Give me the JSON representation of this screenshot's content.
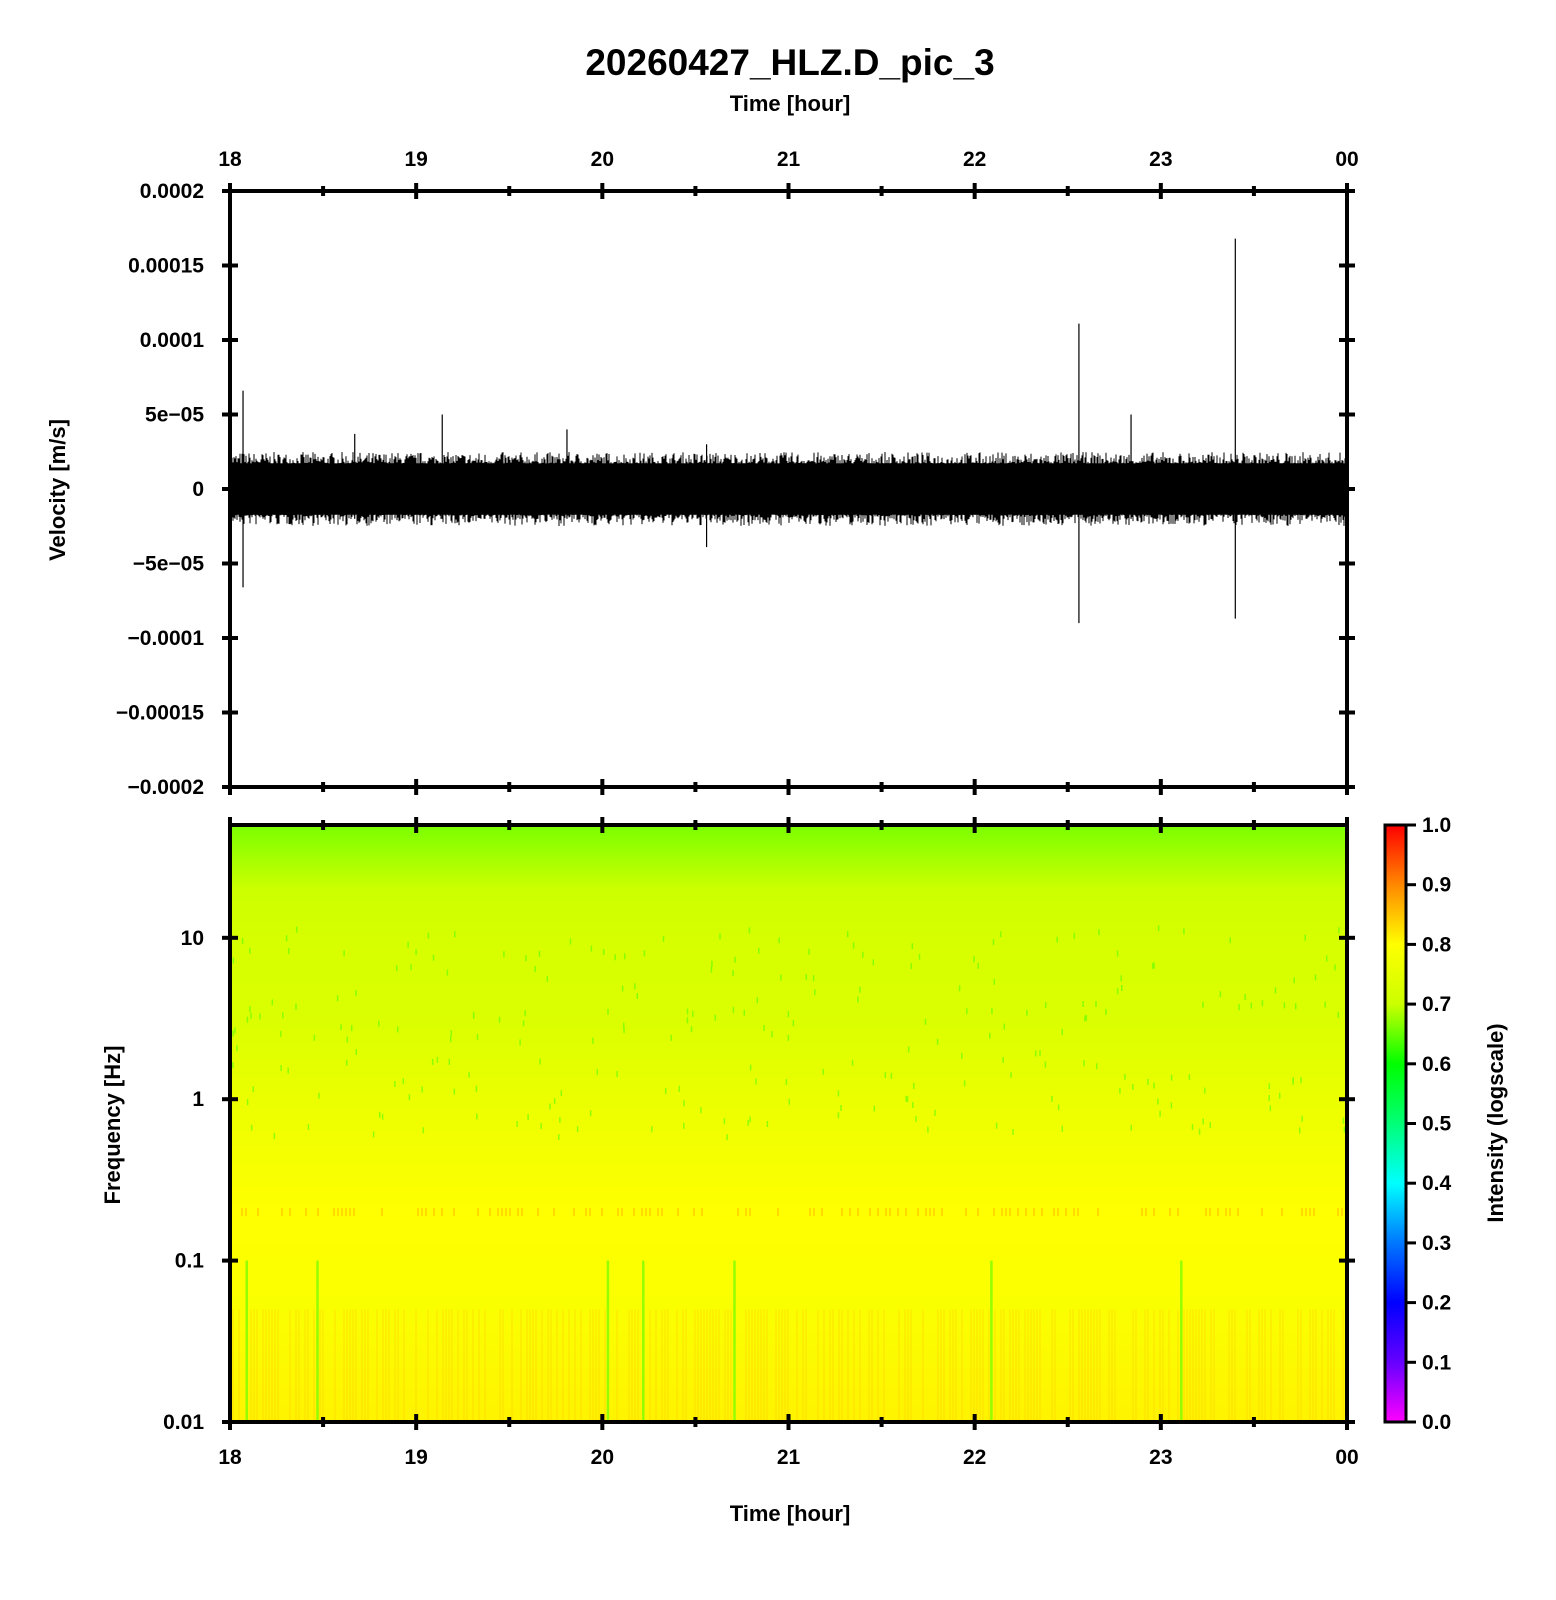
{
  "chart_data": [
    {
      "type": "line",
      "title": "20260427_HLZ.D_pic_3",
      "xlabel": "Time [hour]",
      "ylabel": "Velocity [m/s]",
      "x_ticks": [
        "18",
        "19",
        "20",
        "21",
        "22",
        "23",
        "00"
      ],
      "xlim_hours": [
        18,
        24
      ],
      "ylim": [
        -0.0002,
        0.0002
      ],
      "y_ticks": [
        0.0002,
        0.00015,
        0.0001,
        5e-05,
        0,
        -5e-05,
        -0.0001,
        -0.00015,
        -0.0002
      ],
      "y_tick_labels": [
        "0.0002",
        "0.00015",
        "0.0001",
        "5e−05",
        "0",
        "−5e−05",
        "−0.0001",
        "−0.00015",
        "−0.0002"
      ],
      "series": [
        {
          "noise_envelope": 2.2e-05,
          "spikes": [
            {
              "x": 18.07,
              "y_max": 6.6e-05,
              "y_min": -6.6e-05
            },
            {
              "x": 18.67,
              "y_max": 3.7e-05,
              "y_min": -2e-05
            },
            {
              "x": 19.14,
              "y_max": 5e-05,
              "y_min": -2e-05
            },
            {
              "x": 19.81,
              "y_max": 4e-05,
              "y_min": -2e-05
            },
            {
              "x": 20.56,
              "y_max": 3e-05,
              "y_min": -3.9e-05
            },
            {
              "x": 22.56,
              "y_max": 0.000111,
              "y_min": -9e-05
            },
            {
              "x": 22.84,
              "y_max": 5e-05,
              "y_min": -2e-05
            },
            {
              "x": 23.4,
              "y_max": 0.000168,
              "y_min": -8.7e-05
            }
          ]
        }
      ]
    },
    {
      "type": "heatmap",
      "xlabel": "Time [hour]",
      "ylabel": "Frequency [Hz]",
      "x_ticks": [
        "18",
        "19",
        "20",
        "21",
        "22",
        "23",
        "00"
      ],
      "xlim_hours": [
        18,
        24
      ],
      "y_scale": "log",
      "ylim": [
        0.01,
        50
      ],
      "y_ticks": [
        10,
        1,
        0.1,
        0.01
      ],
      "y_tick_labels": [
        "10",
        "1",
        "0.1",
        "0.01"
      ],
      "colorbar": {
        "label": "Intensity (logscale)",
        "range": [
          0.0,
          1.0
        ],
        "tick_labels": [
          "1.0",
          "0.9",
          "0.8",
          "0.7",
          "0.6",
          "0.5",
          "0.4",
          "0.3",
          "0.2",
          "0.1",
          "0.0"
        ],
        "colors": [
          "#ff00ff",
          "#6600ff",
          "#0000ff",
          "#0077ff",
          "#00ffff",
          "#00ff77",
          "#00ff00",
          "#ccff00",
          "#ffff00",
          "#ff8800",
          "#ff0000"
        ]
      },
      "intensity_profile": [
        {
          "freq": 50,
          "value": 0.66
        },
        {
          "freq": 20,
          "value": 0.7
        },
        {
          "freq": 10,
          "value": 0.72
        },
        {
          "freq": 3,
          "value": 0.73
        },
        {
          "freq": 1,
          "value": 0.76
        },
        {
          "freq": 0.2,
          "value": 0.8
        },
        {
          "freq": 0.05,
          "value": 0.79
        },
        {
          "freq": 0.01,
          "value": 0.81
        }
      ],
      "green_streaks_hours": [
        18.09,
        18.47,
        20.03,
        20.22,
        20.71,
        22.09,
        23.11
      ]
    }
  ]
}
